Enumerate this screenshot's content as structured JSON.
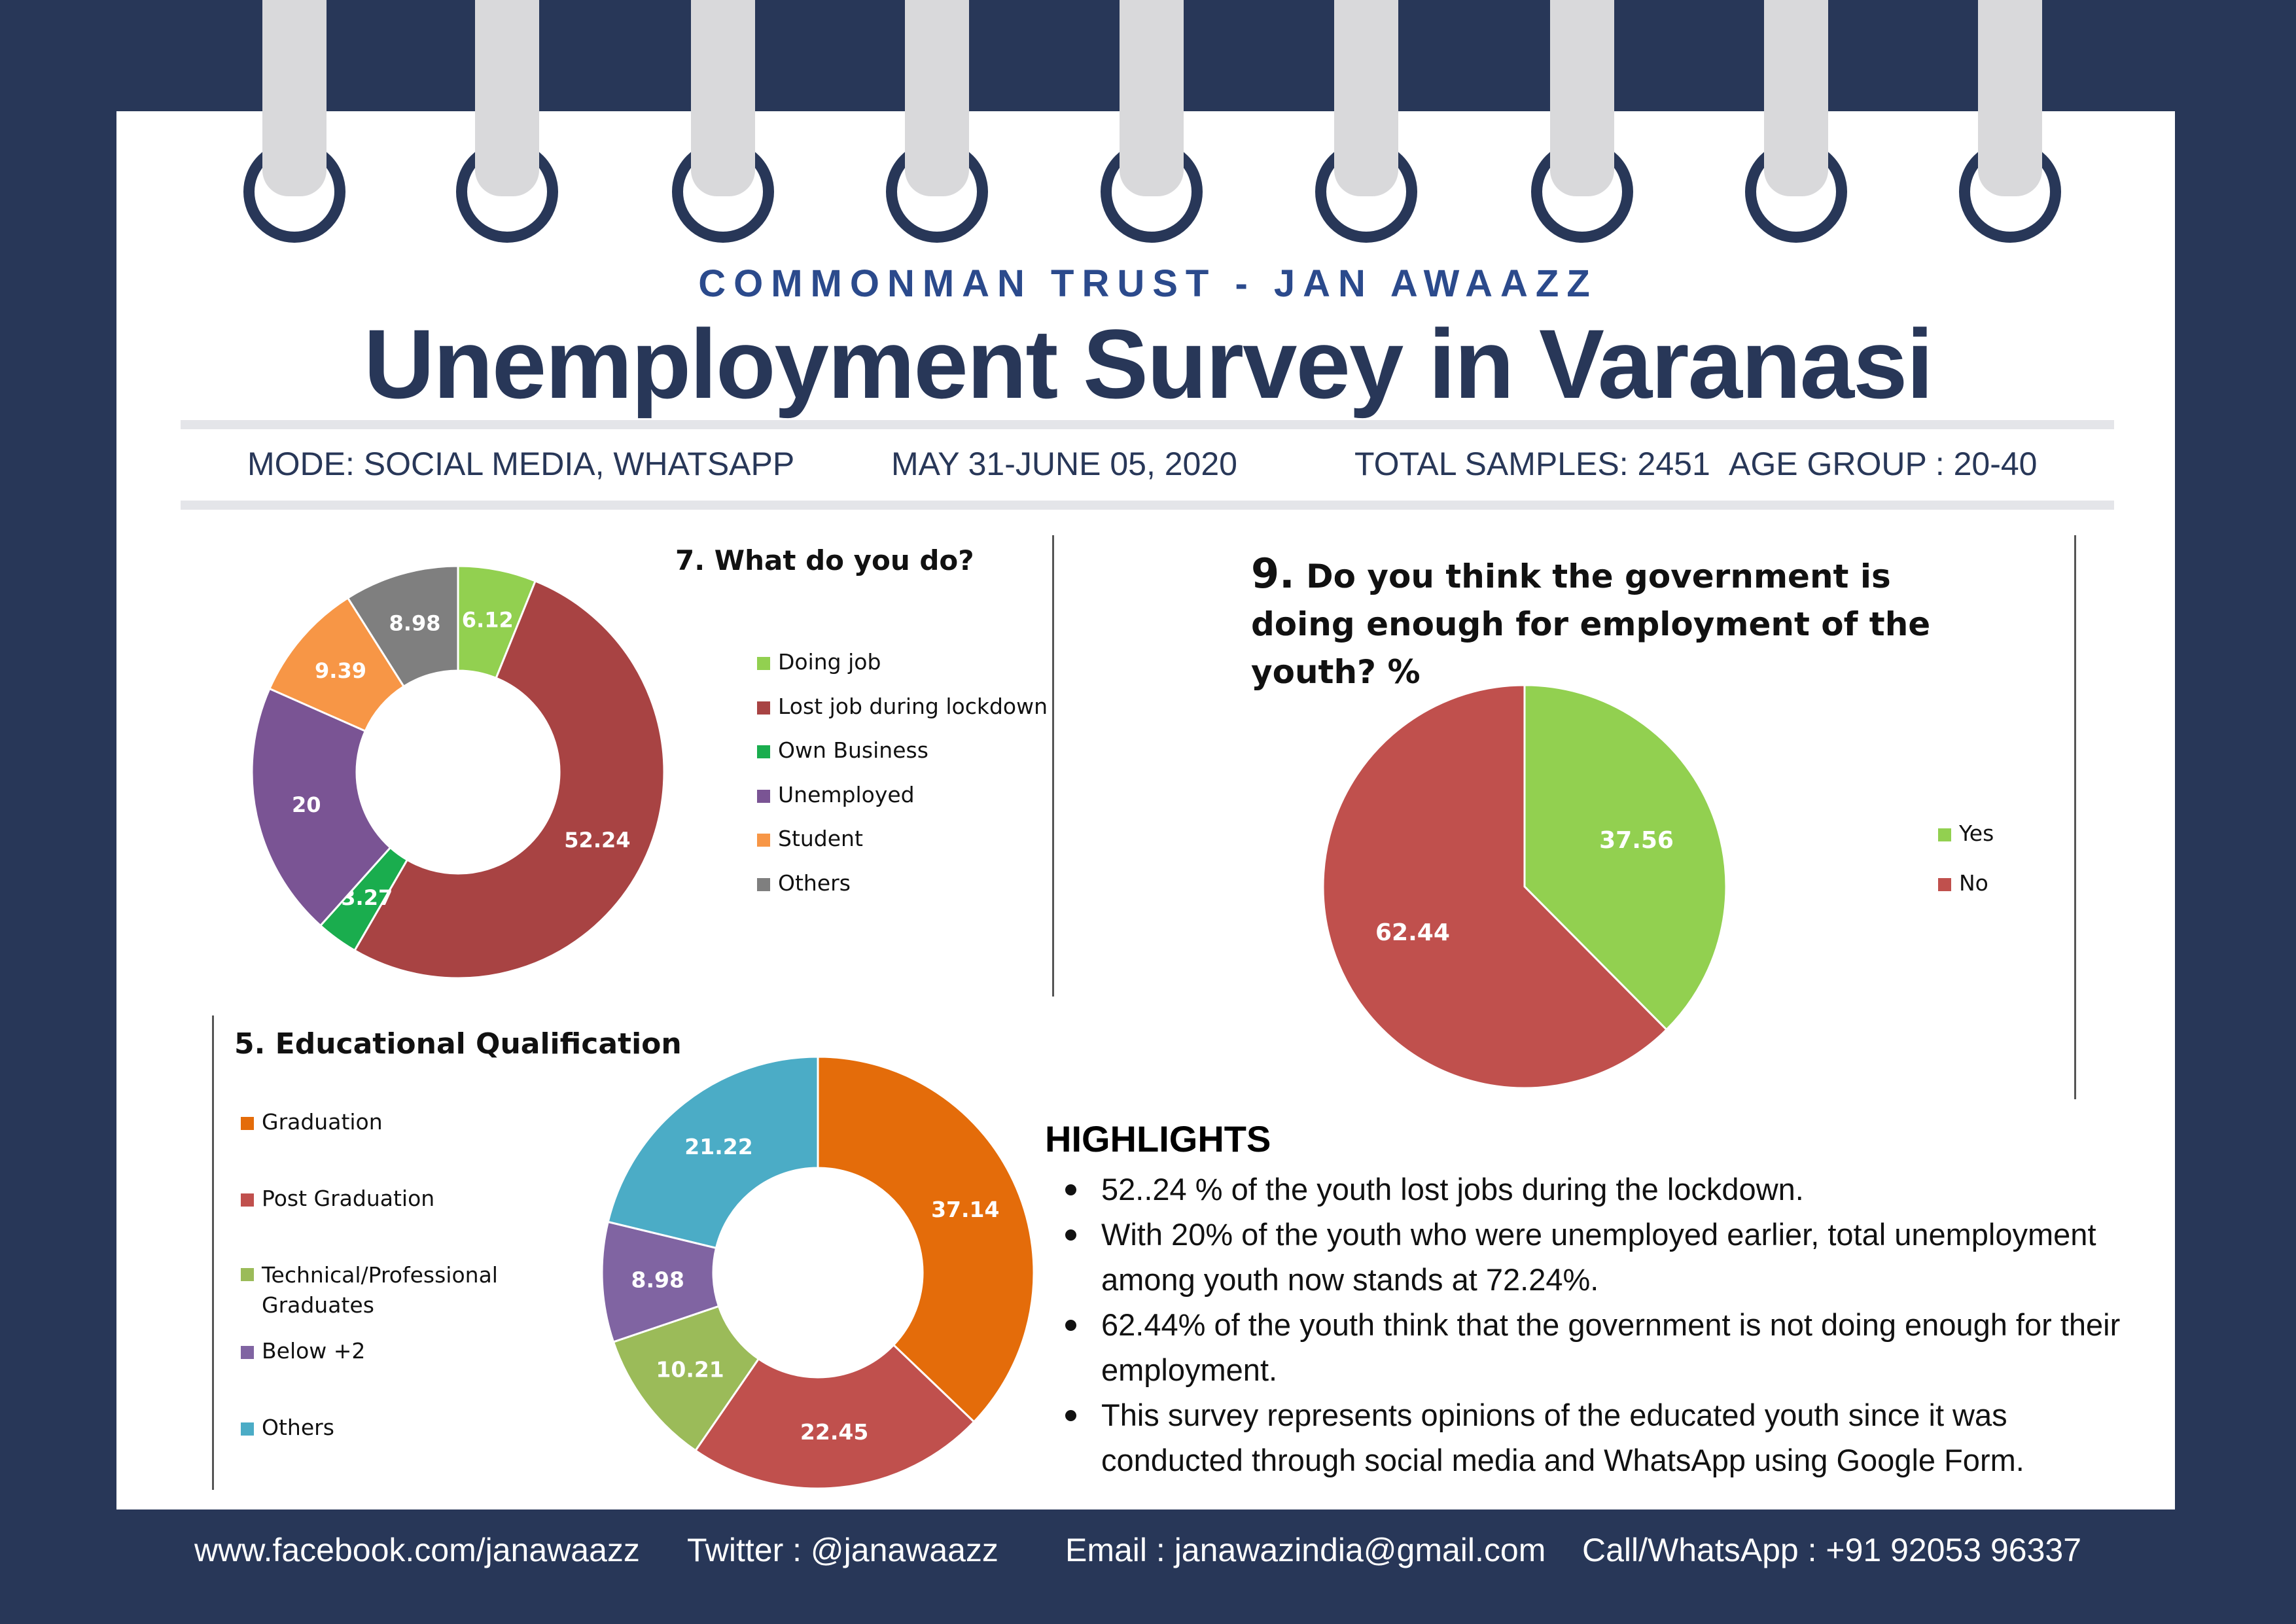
{
  "header": {
    "brand": "COMMONMAN TRUST - JAN AWAAZZ",
    "title": "Unemployment Survey in Varanasi"
  },
  "meta": {
    "mode": "MODE: SOCIAL MEDIA, WHATSAPP",
    "dates": "MAY 31-JUNE 05, 2020",
    "samples": "TOTAL SAMPLES: 2451",
    "age": "AGE GROUP : 20-40"
  },
  "chart_data": [
    {
      "type": "pie",
      "donut": true,
      "title": "7. What do you do?",
      "categories": [
        "Doing job",
        "Lost job  during lockdown",
        "Own Business",
        "Unemployed",
        "Student",
        "Others"
      ],
      "values": [
        6.12,
        52.24,
        3.27,
        20,
        9.39,
        8.98
      ],
      "colors": [
        "#92d050",
        "#a84343",
        "#1aad4e",
        "#7a5494",
        "#f79646",
        "#7f7f7f"
      ],
      "legend": "right"
    },
    {
      "type": "pie",
      "donut": false,
      "title_num": "9.",
      "title": "Do you think the government is doing enough for employment of the youth? %",
      "categories": [
        "Yes",
        "No"
      ],
      "values": [
        37.56,
        62.44
      ],
      "colors": [
        "#92d050",
        "#c0504d"
      ],
      "legend": "right"
    },
    {
      "type": "pie",
      "donut": true,
      "title": "5. Educational Qualification",
      "categories": [
        "Graduation",
        "Post Graduation",
        "Technical/Professional Graduates",
        "Below +2",
        "Others"
      ],
      "values": [
        37.14,
        22.45,
        10.21,
        8.98,
        21.22
      ],
      "colors": [
        "#e46c0a",
        "#c0504d",
        "#9bbb59",
        "#8064a2",
        "#4bacc6"
      ],
      "legend": "left"
    }
  ],
  "highlights": {
    "title": "HIGHLIGHTS",
    "items": [
      "52..24 % of the youth lost jobs during the lockdown.",
      "With 20% of the youth who were unemployed earlier, total unemployment among youth now stands at 72.24%.",
      "62.44% of the youth think that the government is not doing enough for their employment.",
      "This survey represents opinions of the educated youth since it was conducted through social media and WhatsApp using Google Form."
    ]
  },
  "footer": {
    "facebook": "www.facebook.com/janawaazz",
    "twitter": "Twitter : @janawaazz",
    "email": "Email : janawazindia@gmail.com",
    "phone": "Call/WhatsApp : +91 92053 96337"
  }
}
